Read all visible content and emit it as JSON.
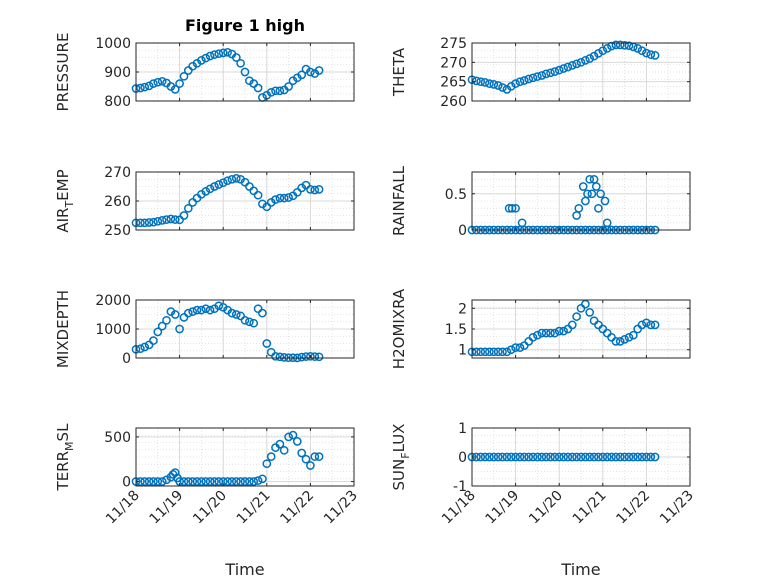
{
  "figure_title": "Figure 1 high",
  "marker_color": "#0072bd",
  "chart_data": [
    {
      "type": "scatter",
      "id": "pressure",
      "title": "Figure 1 high",
      "ylabel": "PRESSURE",
      "ylabel_sub": "",
      "xlabel": "",
      "ylim": [
        800,
        1000
      ],
      "yticks": [
        800,
        900,
        1000
      ],
      "ytick_labels": [
        "800",
        "900",
        "1000"
      ],
      "xlim": [
        0,
        5
      ],
      "xticks": [
        0,
        1,
        2,
        3,
        4,
        5
      ],
      "xtick_labels": [
        "11/18",
        "11/19",
        "11/20",
        "11/21",
        "11/22",
        "11/23"
      ],
      "grid": true,
      "x": [
        0,
        0.1,
        0.2,
        0.3,
        0.4,
        0.5,
        0.6,
        0.7,
        0.8,
        0.9,
        1.0,
        1.1,
        1.2,
        1.3,
        1.4,
        1.5,
        1.6,
        1.7,
        1.8,
        1.9,
        2.0,
        2.1,
        2.2,
        2.3,
        2.4,
        2.5,
        2.6,
        2.7,
        2.8,
        2.9,
        3.0,
        3.1,
        3.2,
        3.3,
        3.4,
        3.5,
        3.6,
        3.7,
        3.8,
        3.9,
        4.0,
        4.1,
        4.2
      ],
      "y": [
        843,
        845,
        848,
        852,
        860,
        865,
        868,
        862,
        850,
        840,
        860,
        885,
        905,
        920,
        930,
        940,
        948,
        955,
        960,
        963,
        966,
        968,
        962,
        950,
        930,
        900,
        870,
        860,
        845,
        812,
        820,
        830,
        835,
        835,
        838,
        850,
        870,
        880,
        890,
        910,
        900,
        895,
        905
      ]
    },
    {
      "type": "scatter",
      "id": "theta",
      "title": "",
      "ylabel": "THETA",
      "ylabel_sub": "",
      "xlabel": "",
      "ylim": [
        260,
        275
      ],
      "yticks": [
        260,
        265,
        270,
        275
      ],
      "ytick_labels": [
        "260",
        "265",
        "270",
        "275"
      ],
      "xlim": [
        0,
        5
      ],
      "xticks": [
        0,
        1,
        2,
        3,
        4,
        5
      ],
      "xtick_labels": [
        "11/18",
        "11/19",
        "11/20",
        "11/21",
        "11/22",
        "11/23"
      ],
      "grid": true,
      "x": [
        0,
        0.1,
        0.2,
        0.3,
        0.4,
        0.5,
        0.6,
        0.7,
        0.8,
        0.9,
        1.0,
        1.1,
        1.2,
        1.3,
        1.4,
        1.5,
        1.6,
        1.7,
        1.8,
        1.9,
        2.0,
        2.1,
        2.2,
        2.3,
        2.4,
        2.5,
        2.6,
        2.7,
        2.8,
        2.9,
        3.0,
        3.1,
        3.2,
        3.3,
        3.4,
        3.5,
        3.6,
        3.7,
        3.8,
        3.9,
        4.0,
        4.1,
        4.2
      ],
      "y": [
        265.5,
        265.2,
        265,
        264.8,
        264.5,
        264.3,
        264,
        263.5,
        263,
        263.8,
        264.5,
        265,
        265.3,
        265.7,
        266,
        266.3,
        266.6,
        267,
        267.3,
        267.6,
        268,
        268.4,
        268.8,
        269.2,
        269.6,
        270,
        270.5,
        271,
        271.6,
        272.3,
        273,
        273.6,
        274.2,
        274.5,
        274.5,
        274.4,
        274.3,
        274,
        273.6,
        273,
        272.4,
        272,
        271.8
      ]
    },
    {
      "type": "scatter",
      "id": "airtemp",
      "title": "",
      "ylabel": "AIR",
      "ylabel_sub": "T",
      "ylabel_rest": "EMP",
      "xlabel": "",
      "ylim": [
        250,
        270
      ],
      "yticks": [
        250,
        260,
        270
      ],
      "ytick_labels": [
        "250",
        "260",
        "270"
      ],
      "xlim": [
        0,
        5
      ],
      "xticks": [
        0,
        1,
        2,
        3,
        4,
        5
      ],
      "xtick_labels": [
        "11/18",
        "11/19",
        "11/20",
        "11/21",
        "11/22",
        "11/23"
      ],
      "grid": true,
      "x": [
        0,
        0.1,
        0.2,
        0.3,
        0.4,
        0.5,
        0.6,
        0.7,
        0.8,
        0.9,
        1.0,
        1.1,
        1.2,
        1.3,
        1.4,
        1.5,
        1.6,
        1.7,
        1.8,
        1.9,
        2.0,
        2.1,
        2.2,
        2.3,
        2.4,
        2.5,
        2.6,
        2.7,
        2.8,
        2.9,
        3.0,
        3.1,
        3.2,
        3.3,
        3.4,
        3.5,
        3.6,
        3.7,
        3.8,
        3.9,
        4.0,
        4.1,
        4.2
      ],
      "y": [
        252.5,
        252.5,
        252.5,
        252.6,
        252.7,
        253,
        253.3,
        253.6,
        253.8,
        253.6,
        253.5,
        255,
        257.5,
        259.5,
        261,
        262.3,
        263.3,
        264.2,
        265,
        265.7,
        266.3,
        267,
        267.5,
        267.8,
        267.5,
        266.5,
        265,
        263.5,
        262,
        259,
        258,
        259.5,
        260.5,
        261,
        261,
        261.2,
        261.8,
        263,
        264.5,
        265.5,
        264,
        263.8,
        264
      ]
    },
    {
      "type": "scatter",
      "id": "rainfall",
      "title": "",
      "ylabel": "RAINFALL",
      "ylabel_sub": "",
      "xlabel": "",
      "ylim": [
        0,
        0.8
      ],
      "yticks": [
        0,
        0.5
      ],
      "ytick_labels": [
        "0",
        "0.5"
      ],
      "xlim": [
        0,
        5
      ],
      "xticks": [
        0,
        1,
        2,
        3,
        4,
        5
      ],
      "xtick_labels": [
        "11/18",
        "11/19",
        "11/20",
        "11/21",
        "11/22",
        "11/23"
      ],
      "grid": true,
      "x": [
        0,
        0.1,
        0.2,
        0.3,
        0.4,
        0.5,
        0.6,
        0.7,
        0.8,
        0.9,
        1.0,
        1.1,
        1.2,
        1.3,
        1.4,
        1.5,
        1.6,
        1.7,
        1.8,
        1.9,
        2.0,
        2.1,
        2.2,
        2.3,
        2.4,
        2.5,
        2.6,
        2.7,
        2.8,
        2.9,
        3.0,
        3.1,
        3.2,
        3.3,
        3.4,
        3.5,
        3.6,
        3.7,
        3.8,
        3.9,
        4.0,
        4.1,
        4.2,
        0.85,
        0.92,
        1.0,
        1.15,
        2.4,
        2.45,
        2.55,
        2.6,
        2.65,
        2.7,
        2.75,
        2.8,
        2.85,
        2.9,
        2.95,
        3.0,
        3.05,
        3.1
      ],
      "y": [
        0,
        0,
        0,
        0,
        0,
        0,
        0,
        0,
        0,
        0,
        0,
        0,
        0,
        0,
        0,
        0,
        0,
        0,
        0,
        0,
        0,
        0,
        0,
        0,
        0,
        0,
        0,
        0,
        0,
        0,
        0,
        0,
        0,
        0,
        0,
        0,
        0,
        0,
        0,
        0,
        0,
        0,
        0,
        0.3,
        0.3,
        0.3,
        0.1,
        0.2,
        0.3,
        0.6,
        0.4,
        0.5,
        0.7,
        0.5,
        0.7,
        0.6,
        0.3,
        0.5,
        0,
        0.4,
        0.1
      ]
    },
    {
      "type": "scatter",
      "id": "mixdepth",
      "title": "",
      "ylabel": "MIXDEPTH",
      "ylabel_sub": "",
      "xlabel": "",
      "ylim": [
        0,
        2000
      ],
      "yticks": [
        0,
        1000,
        2000
      ],
      "ytick_labels": [
        "0",
        "1000",
        "2000"
      ],
      "xlim": [
        0,
        5
      ],
      "xticks": [
        0,
        1,
        2,
        3,
        4,
        5
      ],
      "xtick_labels": [
        "11/18",
        "11/19",
        "11/20",
        "11/21",
        "11/22",
        "11/23"
      ],
      "grid": true,
      "x": [
        0,
        0.1,
        0.2,
        0.3,
        0.4,
        0.5,
        0.6,
        0.7,
        0.8,
        0.9,
        1.0,
        1.1,
        1.2,
        1.3,
        1.4,
        1.5,
        1.6,
        1.7,
        1.8,
        1.9,
        2.0,
        2.1,
        2.2,
        2.3,
        2.4,
        2.5,
        2.6,
        2.7,
        2.8,
        2.9,
        3.0,
        3.1,
        3.2,
        3.3,
        3.4,
        3.5,
        3.6,
        3.7,
        3.8,
        3.9,
        4.0,
        4.1,
        4.2
      ],
      "y": [
        300,
        320,
        380,
        450,
        600,
        900,
        1100,
        1300,
        1600,
        1500,
        1000,
        1400,
        1550,
        1600,
        1650,
        1650,
        1700,
        1650,
        1700,
        1800,
        1750,
        1650,
        1550,
        1500,
        1450,
        1300,
        1250,
        1200,
        1700,
        1550,
        500,
        200,
        60,
        40,
        20,
        10,
        10,
        5,
        30,
        50,
        60,
        50,
        40
      ]
    },
    {
      "type": "scatter",
      "id": "h2omixra",
      "title": "",
      "ylabel": "H2OMIXRA",
      "ylabel_sub": "",
      "xlabel": "",
      "ylim": [
        0.8,
        2.2
      ],
      "yticks": [
        1,
        1.5,
        2
      ],
      "ytick_labels": [
        "1",
        "1.5",
        "2"
      ],
      "xlim": [
        0,
        5
      ],
      "xticks": [
        0,
        1,
        2,
        3,
        4,
        5
      ],
      "xtick_labels": [
        "11/18",
        "11/19",
        "11/20",
        "11/21",
        "11/22",
        "11/23"
      ],
      "grid": true,
      "x": [
        0,
        0.1,
        0.2,
        0.3,
        0.4,
        0.5,
        0.6,
        0.7,
        0.8,
        0.9,
        1.0,
        1.1,
        1.2,
        1.3,
        1.4,
        1.5,
        1.6,
        1.7,
        1.8,
        1.9,
        2.0,
        2.1,
        2.2,
        2.3,
        2.4,
        2.5,
        2.6,
        2.7,
        2.8,
        2.9,
        3.0,
        3.1,
        3.2,
        3.3,
        3.4,
        3.5,
        3.6,
        3.7,
        3.8,
        3.9,
        4.0,
        4.1,
        4.2
      ],
      "y": [
        0.95,
        0.95,
        0.95,
        0.95,
        0.95,
        0.95,
        0.95,
        0.95,
        0.95,
        1.0,
        1.05,
        1.05,
        1.1,
        1.2,
        1.3,
        1.35,
        1.4,
        1.4,
        1.4,
        1.4,
        1.45,
        1.45,
        1.5,
        1.6,
        1.8,
        2.0,
        2.1,
        1.9,
        1.7,
        1.6,
        1.5,
        1.4,
        1.3,
        1.2,
        1.2,
        1.25,
        1.3,
        1.35,
        1.5,
        1.6,
        1.65,
        1.6,
        1.6
      ]
    },
    {
      "type": "scatter",
      "id": "terrmsl",
      "title": "",
      "ylabel": "TERR",
      "ylabel_sub": "M",
      "ylabel_rest": "SL",
      "xlabel": "Time",
      "ylim": [
        -50,
        600
      ],
      "yticks": [
        0,
        500
      ],
      "ytick_labels": [
        "0",
        "500"
      ],
      "xlim": [
        0,
        5
      ],
      "xticks": [
        0,
        1,
        2,
        3,
        4,
        5
      ],
      "xtick_labels": [
        "11/18",
        "11/19",
        "11/20",
        "11/21",
        "11/22",
        "11/23"
      ],
      "grid": true,
      "x": [
        0,
        0.1,
        0.2,
        0.3,
        0.4,
        0.5,
        0.6,
        0.7,
        0.8,
        0.85,
        0.9,
        0.95,
        1.0,
        1.1,
        1.2,
        1.3,
        1.4,
        1.5,
        1.6,
        1.7,
        1.8,
        1.9,
        2.0,
        2.1,
        2.2,
        2.3,
        2.4,
        2.5,
        2.6,
        2.7,
        2.8,
        2.9,
        3.0,
        3.1,
        3.2,
        3.3,
        3.4,
        3.5,
        3.6,
        3.7,
        3.8,
        3.9,
        4.0,
        4.1,
        4.2
      ],
      "y": [
        0,
        0,
        0,
        0,
        0,
        0,
        0,
        20,
        50,
        80,
        100,
        40,
        0,
        0,
        0,
        0,
        0,
        0,
        0,
        0,
        0,
        0,
        0,
        0,
        0,
        0,
        0,
        0,
        0,
        0,
        10,
        30,
        200,
        280,
        380,
        420,
        350,
        500,
        520,
        450,
        320,
        250,
        180,
        280,
        280
      ]
    },
    {
      "type": "scatter",
      "id": "sunflux",
      "title": "",
      "ylabel": "SUN",
      "ylabel_sub": "F",
      "ylabel_rest": "LUX",
      "xlabel": "Time",
      "ylim": [
        -1,
        1
      ],
      "yticks": [
        -1,
        0,
        1
      ],
      "ytick_labels": [
        "-1",
        "0",
        "1"
      ],
      "xlim": [
        0,
        5
      ],
      "xticks": [
        0,
        1,
        2,
        3,
        4,
        5
      ],
      "xtick_labels": [
        "11/18",
        "11/19",
        "11/20",
        "11/21",
        "11/22",
        "11/23"
      ],
      "grid": true,
      "x": [
        0,
        0.1,
        0.2,
        0.3,
        0.4,
        0.5,
        0.6,
        0.7,
        0.8,
        0.9,
        1.0,
        1.1,
        1.2,
        1.3,
        1.4,
        1.5,
        1.6,
        1.7,
        1.8,
        1.9,
        2.0,
        2.1,
        2.2,
        2.3,
        2.4,
        2.5,
        2.6,
        2.7,
        2.8,
        2.9,
        3.0,
        3.1,
        3.2,
        3.3,
        3.4,
        3.5,
        3.6,
        3.7,
        3.8,
        3.9,
        4.0,
        4.1,
        4.2
      ],
      "y": [
        0,
        0,
        0,
        0,
        0,
        0,
        0,
        0,
        0,
        0,
        0,
        0,
        0,
        0,
        0,
        0,
        0,
        0,
        0,
        0,
        0,
        0,
        0,
        0,
        0,
        0,
        0,
        0,
        0,
        0,
        0,
        0,
        0,
        0,
        0,
        0,
        0,
        0,
        0,
        0,
        0,
        0,
        0
      ]
    }
  ]
}
